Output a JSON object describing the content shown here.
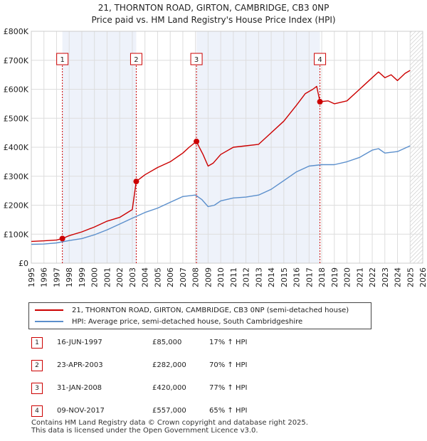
{
  "title_line1": "21, THORNTON ROAD, GIRTON, CAMBRIDGE, CB3 0NP",
  "title_line2": "Price paid vs. HM Land Registry's House Price Index (HPI)",
  "legend": {
    "property": "21, THORNTON ROAD, GIRTON, CAMBRIDGE, CB3 0NP (semi-detached house)",
    "hpi": "HPI: Average price, semi-detached house, South Cambridgeshire"
  },
  "colors": {
    "property": "#cc0000",
    "hpi": "#5b8fcc",
    "grid": "#dddddd",
    "shade": "#eef2fa",
    "marker_line": "#cc0000"
  },
  "chart_data": {
    "type": "line",
    "xlim": [
      1995,
      2026
    ],
    "ylim": [
      0,
      800000
    ],
    "y_ticks": [
      0,
      100000,
      200000,
      300000,
      400000,
      500000,
      600000,
      700000,
      800000
    ],
    "y_tick_labels": [
      "£0",
      "£100K",
      "£200K",
      "£300K",
      "£400K",
      "£500K",
      "£600K",
      "£700K",
      "£800K"
    ],
    "x_ticks": [
      1995,
      1996,
      1997,
      1998,
      1999,
      2000,
      2001,
      2002,
      2003,
      2004,
      2005,
      2006,
      2007,
      2008,
      2009,
      2010,
      2011,
      2012,
      2013,
      2014,
      2015,
      2016,
      2017,
      2018,
      2019,
      2020,
      2021,
      2022,
      2023,
      2024,
      2025,
      2026
    ],
    "forecast_start": 2025.0,
    "shaded_ranges": [
      [
        1997.46,
        2003.31
      ],
      [
        2008.08,
        2017.86
      ]
    ],
    "series": [
      {
        "name": "21, THORNTON ROAD, GIRTON, CAMBRIDGE, CB3 0NP (semi-detached house)",
        "x": [
          1995,
          1996,
          1997,
          1997.46,
          1998,
          1999,
          2000,
          2001,
          2002,
          2003.0,
          2003.31,
          2004,
          2005,
          2006,
          2007,
          2007.5,
          2008.08,
          2008.3,
          2008.6,
          2009.0,
          2009.4,
          2010,
          2011,
          2012,
          2013,
          2014,
          2015,
          2016,
          2016.7,
          2017.3,
          2017.6,
          2017.86,
          2018.5,
          2019,
          2020,
          2021,
          2022,
          2022.5,
          2023,
          2023.5,
          2024,
          2024.6,
          2025.0
        ],
        "y": [
          75000,
          77000,
          80000,
          85000,
          95000,
          108000,
          125000,
          145000,
          158000,
          185000,
          282000,
          305000,
          330000,
          350000,
          380000,
          400000,
          420000,
          400000,
          375000,
          335000,
          345000,
          375000,
          400000,
          405000,
          410000,
          450000,
          490000,
          545000,
          585000,
          600000,
          610000,
          557000,
          560000,
          550000,
          560000,
          600000,
          640000,
          660000,
          640000,
          650000,
          630000,
          655000,
          665000
        ]
      },
      {
        "name": "HPI: Average price, semi-detached house, South Cambridgeshire",
        "x": [
          1995,
          1996,
          1997,
          1998,
          1999,
          2000,
          2001,
          2002,
          2003,
          2004,
          2005,
          2006,
          2007,
          2008,
          2008.5,
          2009.0,
          2009.5,
          2010,
          2011,
          2012,
          2013,
          2014,
          2015,
          2016,
          2017,
          2018,
          2019,
          2020,
          2021,
          2022,
          2022.5,
          2023,
          2024,
          2025.0
        ],
        "y": [
          65000,
          66000,
          70000,
          78000,
          85000,
          98000,
          115000,
          135000,
          155000,
          175000,
          190000,
          210000,
          230000,
          235000,
          220000,
          195000,
          200000,
          215000,
          225000,
          228000,
          235000,
          255000,
          285000,
          315000,
          335000,
          340000,
          340000,
          350000,
          365000,
          390000,
          395000,
          380000,
          385000,
          405000
        ]
      }
    ],
    "sales": [
      {
        "num": "1",
        "x": 1997.46,
        "y": 85000
      },
      {
        "num": "2",
        "x": 2003.31,
        "y": 282000
      },
      {
        "num": "3",
        "x": 2008.08,
        "y": 420000
      },
      {
        "num": "4",
        "x": 2017.86,
        "y": 557000
      }
    ]
  },
  "sales_table": [
    {
      "num": "1",
      "date": "16-JUN-1997",
      "price": "£85,000",
      "hpi": "17% ↑ HPI"
    },
    {
      "num": "2",
      "date": "23-APR-2003",
      "price": "£282,000",
      "hpi": "70% ↑ HPI"
    },
    {
      "num": "3",
      "date": "31-JAN-2008",
      "price": "£420,000",
      "hpi": "77% ↑ HPI"
    },
    {
      "num": "4",
      "date": "09-NOV-2017",
      "price": "£557,000",
      "hpi": "65% ↑ HPI"
    }
  ],
  "footer": {
    "line1": "Contains HM Land Registry data © Crown copyright and database right 2025.",
    "line2": "This data is licensed under the Open Government Licence v3.0."
  }
}
